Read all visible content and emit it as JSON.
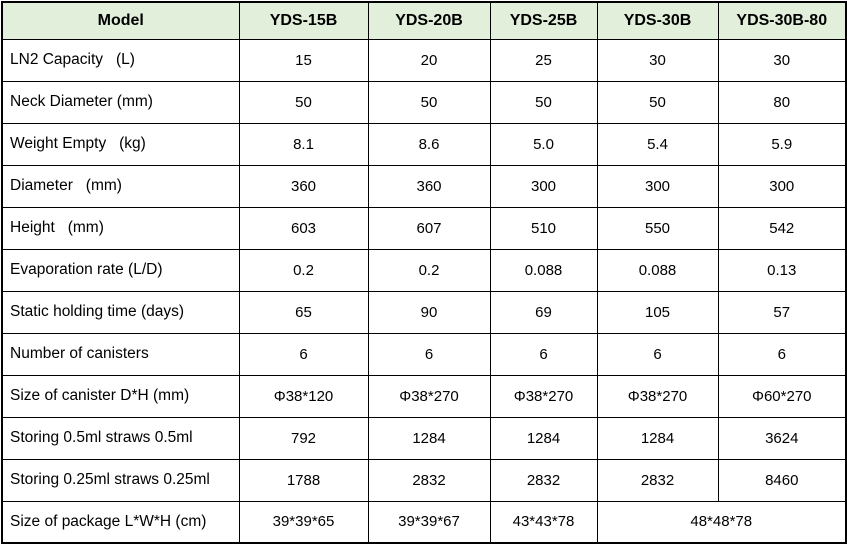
{
  "colors": {
    "header_bg": "#e2efda",
    "border": "#000000",
    "text": "#000000"
  },
  "table": {
    "header": {
      "cells": [
        "Model",
        "YDS-15B",
        "YDS-20B",
        "YDS-25B",
        "YDS-30B",
        "YDS-30B-80"
      ]
    },
    "rows": [
      {
        "label": "LN2 Capacity   (L)",
        "values": [
          "15",
          "20",
          "25",
          "30",
          "30"
        ]
      },
      {
        "label": "Neck Diameter (mm)",
        "values": [
          "50",
          "50",
          "50",
          "50",
          "80"
        ]
      },
      {
        "label": "Weight Empty   (kg)",
        "values": [
          "8.1",
          "8.6",
          "5.0",
          "5.4",
          "5.9"
        ]
      },
      {
        "label": "Diameter   (mm)",
        "values": [
          "360",
          "360",
          "300",
          "300",
          "300"
        ]
      },
      {
        "label": "Height   (mm)",
        "values": [
          "603",
          "607",
          "510",
          "550",
          "542"
        ]
      },
      {
        "label": "Evaporation rate (L/D)",
        "values": [
          "0.2",
          "0.2",
          "0.088",
          "0.088",
          "0.13"
        ]
      },
      {
        "label": "Static holding time (days)",
        "values": [
          "65",
          "90",
          "69",
          "105",
          "57"
        ]
      },
      {
        "label": "Number of canisters",
        "values": [
          "6",
          "6",
          "6",
          "6",
          "6"
        ]
      },
      {
        "label": "Size of canister D*H (mm)",
        "values": [
          "Φ38*120",
          "Φ38*270",
          "Φ38*270",
          "Φ38*270",
          "Φ60*270"
        ]
      },
      {
        "label": "Storing 0.5ml straws 0.5ml",
        "values": [
          "792",
          "1284",
          "1284",
          "1284",
          "3624"
        ]
      },
      {
        "label": "Storing 0.25ml straws 0.25ml",
        "values": [
          "1788",
          "2832",
          "2832",
          "2832",
          "8460"
        ]
      },
      {
        "label": "Size of package L*W*H (cm)",
        "values": [
          "39*39*65",
          "39*39*67",
          "43*43*78",
          "48*48*78"
        ],
        "colspans": [
          1,
          1,
          1,
          2
        ]
      }
    ]
  }
}
